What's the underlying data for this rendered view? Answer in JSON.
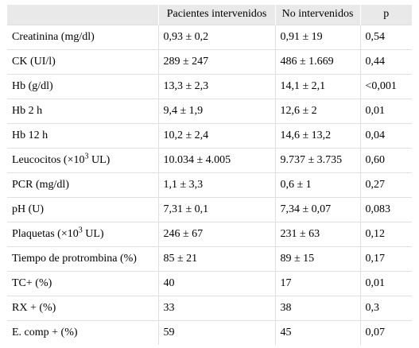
{
  "table": {
    "headers": [
      "",
      "Pacientes intervenidos",
      "No intervenidos",
      "p"
    ],
    "rows": [
      {
        "label": "Creatinina (mg/dl)",
        "a": "0,93 ± 0,2",
        "b": "0,91 ± 19",
        "p": "0,54"
      },
      {
        "label": "CK (UI/l)",
        "a": "289 ± 247",
        "b": "486 ± 1.669",
        "p": "0,44"
      },
      {
        "label": "Hb (g/dl)",
        "a": "13,3 ± 2,3",
        "b": "14,1 ± 2,1",
        "p": "<0,001"
      },
      {
        "label": "Hb 2 h",
        "a": "9,4 ± 1,9",
        "b": "12,6 ± 2",
        "p": "0,01"
      },
      {
        "label": "Hb 12 h",
        "a": "10,2 ± 2,4",
        "b": "14,6 ± 13,2",
        "p": "0,04"
      },
      {
        "label_pre": "Leucocitos (×10",
        "label_sup": "3",
        "label_post": " UL)",
        "a": "10.034 ± 4.005",
        "b": "9.737 ± 3.735",
        "p": "0,60"
      },
      {
        "label": "PCR (mg/dl)",
        "a": "1,1 ± 3,3",
        "b": "0,6 ± 1",
        "p": "0,27"
      },
      {
        "label": "pH (U)",
        "a": "7,31 ± 0,1",
        "b": "7,34 ± 0,07",
        "p": "0,083"
      },
      {
        "label_pre": "Plaquetas (×10",
        "label_sup": "3",
        "label_post": " UL)",
        "a": "246 ± 67",
        "b": "231 ± 63",
        "p": "0,12"
      },
      {
        "label": "Tiempo de protrombina (%)",
        "a": "85 ± 21",
        "b": "89 ± 15",
        "p": "0,17"
      },
      {
        "label": "TC+ (%)",
        "a": "40",
        "b": "17",
        "p": "0,01"
      },
      {
        "label": "RX + (%)",
        "a": "33",
        "b": "38",
        "p": "0,3"
      },
      {
        "label": "E. comp + (%)",
        "a": "59",
        "b": "45",
        "p": "0,07"
      }
    ]
  }
}
